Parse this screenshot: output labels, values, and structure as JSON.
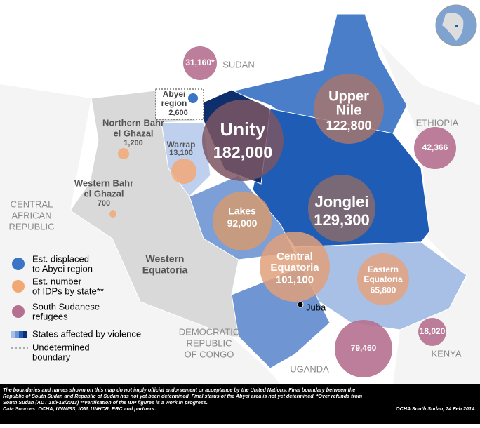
{
  "countries": [
    {
      "lines": [
        "SUDAN"
      ]
    },
    {
      "lines": [
        "ETHIOPIA"
      ]
    },
    {
      "lines": [
        "CENTRAL",
        "AFRICAN",
        "REPUBLIC"
      ]
    },
    {
      "lines": [
        "DEMOCRATIC",
        "REPUBLIC",
        "OF CONGO"
      ]
    },
    {
      "lines": [
        "UGANDA"
      ]
    },
    {
      "lines": [
        "KENYA"
      ]
    }
  ],
  "refugees": [
    "31,160*",
    "42,366",
    "79,460",
    "18,020"
  ],
  "abyei": {
    "lines": [
      "Abyei",
      "region"
    ],
    "value": "2,600"
  },
  "states": [
    {
      "lines": [
        "Unity"
      ],
      "value": "182,000"
    },
    {
      "lines": [
        "Upper",
        "Nile"
      ],
      "value": "122,800"
    },
    {
      "lines": [
        "Jonglei"
      ],
      "value": "129,300"
    },
    {
      "lines": [
        "Lakes"
      ],
      "value": "92,000"
    },
    {
      "lines": [
        "Central",
        "Equatoria"
      ],
      "value": "101,100"
    },
    {
      "lines": [
        "Eastern",
        "Equatoria"
      ],
      "value": "65,800"
    },
    {
      "lines": [
        "Warrap"
      ],
      "value": "13,100"
    },
    {
      "lines": [
        "Northern Bahr",
        "el Ghazal"
      ],
      "value": "1,200"
    },
    {
      "lines": [
        "Western Bahr",
        "el Ghazal"
      ],
      "value": "700"
    },
    {
      "lines": [
        "Western",
        "Equatoria"
      ]
    }
  ],
  "city": "Juba",
  "legend": [
    {
      "lines": [
        "Est. displaced",
        "to Abyei region"
      ]
    },
    {
      "lines": [
        "Est. number",
        "of IDPs by state**"
      ]
    },
    {
      "lines": [
        "South Sudanese",
        "refugees"
      ]
    },
    {
      "lines": [
        "States affected by violence"
      ]
    },
    {
      "lines": [
        "Undetermined",
        "boundary"
      ]
    }
  ],
  "footer": {
    "disclaimer": [
      "The boundaries and names shown on this map do not imply official endorsement or acceptance by the United Nations. Final boundary between the",
      "Republic of South Sudan and Republic of Sudan has not yet been determined. Final status of the Abyei area is not yet determined. *Over refunds from",
      "South Sudan (ADT 18/F13/2013) **Verification of the IDP figures is a work in progress."
    ],
    "sources": "Data Sources: OCHA, UNMISS, IOM, UNHCR, RRC and partners.",
    "credit": "OCHA South Sudan, 24 Feb 2014."
  }
}
